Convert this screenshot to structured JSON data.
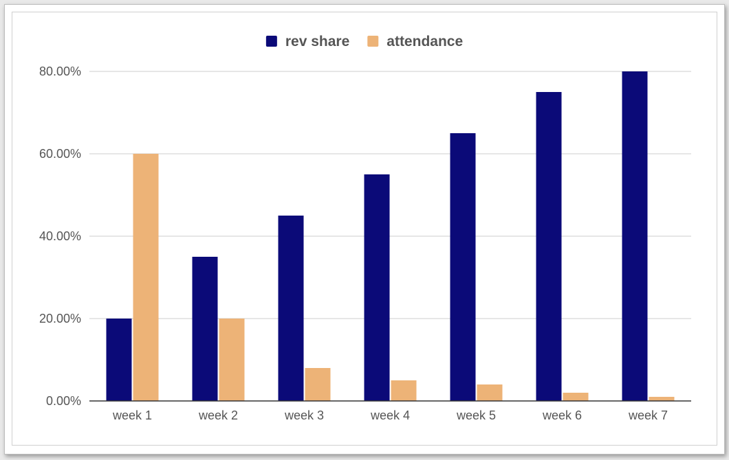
{
  "chart_data": {
    "type": "bar",
    "categories": [
      "week 1",
      "week 2",
      "week 3",
      "week 4",
      "week 5",
      "week 6",
      "week 7"
    ],
    "series": [
      {
        "name": "rev share",
        "color": "#0b0a78",
        "values": [
          20,
          35,
          45,
          55,
          65,
          75,
          80
        ]
      },
      {
        "name": "attendance",
        "color": "#edb377",
        "values": [
          60,
          20,
          8,
          5,
          4,
          2,
          1
        ]
      }
    ],
    "yticks": [
      "0.00%",
      "20.00%",
      "40.00%",
      "60.00%",
      "80.00%"
    ],
    "ytick_values": [
      0,
      20,
      40,
      60,
      80
    ],
    "ylim": [
      0,
      80
    ],
    "grid": true,
    "legend_position": "top-center",
    "gridline_color": "#cccccc",
    "axis_color": "#333333"
  }
}
